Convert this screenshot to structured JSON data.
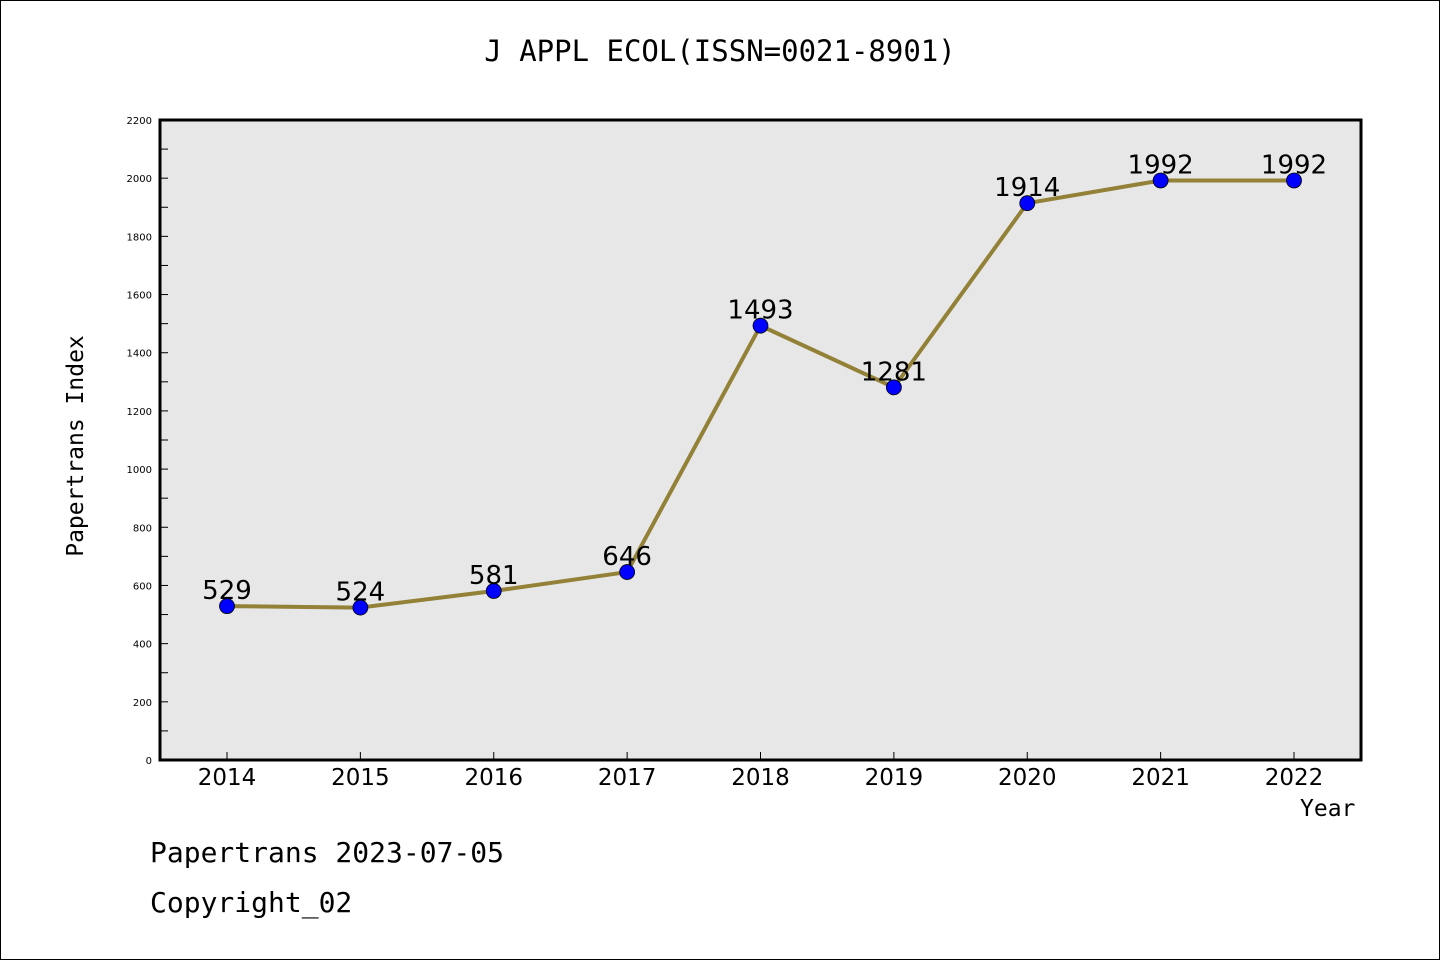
{
  "chart_data": {
    "type": "line",
    "title": "J APPL ECOL(ISSN=0021-8901)",
    "xlabel": "Year",
    "ylabel": "Papertrans Index",
    "categories": [
      "2014",
      "2015",
      "2016",
      "2017",
      "2018",
      "2019",
      "2020",
      "2021",
      "2022"
    ],
    "series": [
      {
        "values": [
          529,
          524,
          581,
          646,
          1493,
          1281,
          1914,
          1992,
          1992
        ],
        "color": "#928137",
        "marker_color": "#0000ff"
      }
    ],
    "data_labels": [
      "529",
      "524",
      "581",
      "646",
      "1493",
      "1281",
      "1914",
      "1992",
      "1992"
    ],
    "ylim": [
      0,
      2200
    ],
    "y_ticks": [
      "0",
      "200",
      "400",
      "600",
      "800",
      "1000",
      "1200",
      "1400",
      "1600",
      "1800",
      "2000",
      "2200"
    ],
    "y_tick_values": [
      0,
      200,
      400,
      600,
      800,
      1000,
      1200,
      1400,
      1600,
      1800,
      2000,
      2200
    ],
    "plot_background": "#e7e7e7",
    "grid": false,
    "legend": "none"
  },
  "footer": {
    "line1": "Papertrans 2023-07-05",
    "line2": "Copyright_02"
  }
}
